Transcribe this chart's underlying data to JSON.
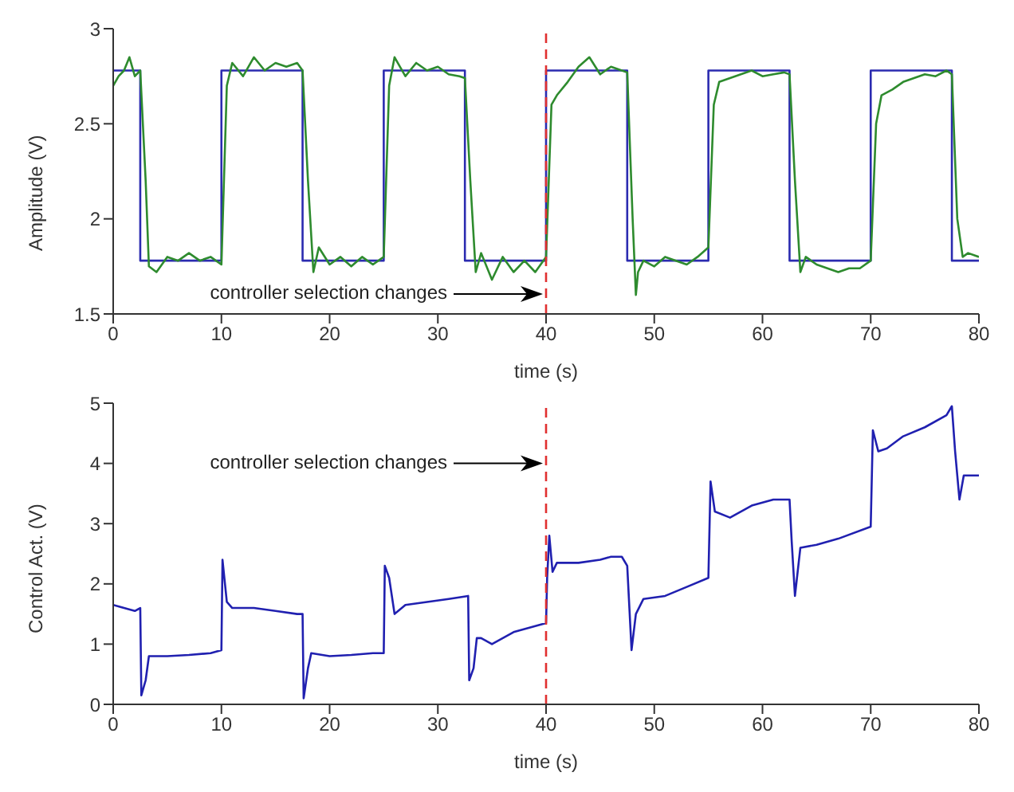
{
  "chart_data": [
    {
      "type": "line",
      "xlabel": "time  (s)",
      "ylabel": "Amplitude  (V)",
      "xlim": [
        0,
        80
      ],
      "xticks": [
        0,
        10,
        20,
        30,
        40,
        50,
        60,
        70,
        80
      ],
      "ylim": [
        1.5,
        3
      ],
      "yticks": [
        1.5,
        2,
        2.5,
        3
      ],
      "marker": "none",
      "line_style": "solid",
      "series": [
        {
          "type": "step",
          "color": "#2b2bb0",
          "x": [
            0,
            2.5,
            10,
            17.5,
            25,
            32.5,
            40,
            47.5,
            55,
            62.5,
            70,
            77.5,
            80
          ],
          "values": [
            2.78,
            1.78,
            2.78,
            1.78,
            2.78,
            1.78,
            2.78,
            1.78,
            2.78,
            1.78,
            2.78,
            1.78,
            1.78
          ]
        },
        {
          "type": "line",
          "color": "#2e8b2e",
          "x": [
            0,
            0.5,
            1,
            1.5,
            2,
            2.5,
            3,
            3.3,
            4,
            5,
            6,
            7,
            8,
            9,
            10,
            10.5,
            11,
            12,
            13,
            14,
            15,
            16,
            17,
            17.5,
            18,
            18.5,
            19,
            20,
            21,
            22,
            23,
            24,
            25,
            25.5,
            26,
            27,
            28,
            29,
            30,
            31,
            32,
            32.5,
            33,
            33.5,
            34,
            35,
            36,
            37,
            38,
            39,
            40,
            40.5,
            41,
            42,
            43,
            44,
            45,
            46,
            47,
            47.5,
            48,
            48.3,
            48.5,
            49,
            50,
            51,
            52,
            53,
            54,
            55,
            55.5,
            56,
            57,
            58,
            59,
            60,
            61,
            62,
            62.5,
            63,
            63.5,
            64,
            65,
            66,
            67,
            68,
            69,
            70,
            70.5,
            71,
            72,
            73,
            74,
            75,
            76,
            77,
            77.5,
            78,
            78.5,
            79,
            80
          ],
          "values": [
            2.7,
            2.75,
            2.78,
            2.85,
            2.75,
            2.78,
            2.2,
            1.75,
            1.72,
            1.8,
            1.78,
            1.82,
            1.78,
            1.8,
            1.76,
            2.7,
            2.82,
            2.75,
            2.85,
            2.78,
            2.82,
            2.8,
            2.82,
            2.78,
            2.2,
            1.72,
            1.85,
            1.76,
            1.8,
            1.75,
            1.8,
            1.76,
            1.8,
            2.7,
            2.85,
            2.75,
            2.82,
            2.78,
            2.8,
            2.76,
            2.75,
            2.74,
            2.2,
            1.72,
            1.82,
            1.68,
            1.8,
            1.72,
            1.78,
            1.72,
            1.8,
            2.6,
            2.65,
            2.72,
            2.8,
            2.85,
            2.76,
            2.8,
            2.78,
            2.77,
            2.0,
            1.6,
            1.72,
            1.78,
            1.75,
            1.8,
            1.78,
            1.76,
            1.8,
            1.85,
            2.6,
            2.72,
            2.74,
            2.76,
            2.78,
            2.75,
            2.76,
            2.77,
            2.76,
            2.2,
            1.72,
            1.8,
            1.76,
            1.74,
            1.72,
            1.74,
            1.74,
            1.78,
            2.5,
            2.65,
            2.68,
            2.72,
            2.74,
            2.76,
            2.75,
            2.78,
            2.76,
            2.0,
            1.8,
            1.82,
            1.8
          ]
        }
      ],
      "ref_lines": [
        {
          "axis": "x",
          "value": 40,
          "color": "#e03030",
          "line_style": "dashed"
        }
      ],
      "annotations": [
        "controller selection changes"
      ]
    },
    {
      "type": "line",
      "xlabel": "time  (s)",
      "ylabel": "Control Act.  (V)",
      "xlim": [
        0,
        80
      ],
      "xticks": [
        0,
        10,
        20,
        30,
        40,
        50,
        60,
        70,
        80
      ],
      "ylim": [
        0,
        5
      ],
      "yticks": [
        0,
        1,
        2,
        3,
        4,
        5
      ],
      "marker": "none",
      "line_style": "solid",
      "series": [
        {
          "type": "line",
          "color": "#2020b0",
          "x": [
            0,
            1,
            2,
            2.5,
            2.6,
            3,
            3.3,
            5,
            7,
            9,
            10,
            10.1,
            10.5,
            11,
            13,
            15,
            17,
            17.5,
            17.6,
            18,
            18.3,
            20,
            22,
            24,
            25,
            25.1,
            25.5,
            26,
            27,
            29,
            31,
            32.8,
            32.9,
            33.3,
            33.6,
            34,
            35,
            37,
            39,
            40,
            40.1,
            40.3,
            40.6,
            41,
            43,
            45,
            46,
            47,
            47.5,
            47.9,
            48.3,
            49,
            51,
            53,
            55,
            55.2,
            55.6,
            57,
            59,
            61,
            62.5,
            62.7,
            63,
            63.5,
            65,
            67,
            70,
            70.2,
            70.7,
            71.5,
            73,
            75,
            77,
            77.5,
            77.8,
            78.2,
            78.6,
            80
          ],
          "values": [
            1.65,
            1.6,
            1.55,
            1.6,
            0.15,
            0.4,
            0.8,
            0.8,
            0.82,
            0.85,
            0.9,
            2.4,
            1.7,
            1.6,
            1.6,
            1.55,
            1.5,
            1.5,
            0.1,
            0.6,
            0.85,
            0.8,
            0.82,
            0.85,
            0.85,
            2.3,
            2.1,
            1.5,
            1.65,
            1.7,
            1.75,
            1.8,
            0.4,
            0.6,
            1.1,
            1.1,
            1.0,
            1.2,
            1.3,
            1.35,
            2.1,
            2.8,
            2.2,
            2.35,
            2.35,
            2.4,
            2.45,
            2.45,
            2.3,
            0.9,
            1.5,
            1.75,
            1.8,
            1.95,
            2.1,
            3.7,
            3.2,
            3.1,
            3.3,
            3.4,
            3.4,
            2.7,
            1.8,
            2.6,
            2.65,
            2.75,
            2.95,
            4.55,
            4.2,
            4.25,
            4.45,
            4.6,
            4.8,
            4.95,
            4.2,
            3.4,
            3.8,
            3.8
          ]
        }
      ],
      "ref_lines": [
        {
          "axis": "x",
          "value": 40,
          "color": "#e03030",
          "line_style": "dashed"
        }
      ],
      "annotations": [
        "controller selection changes"
      ]
    }
  ]
}
